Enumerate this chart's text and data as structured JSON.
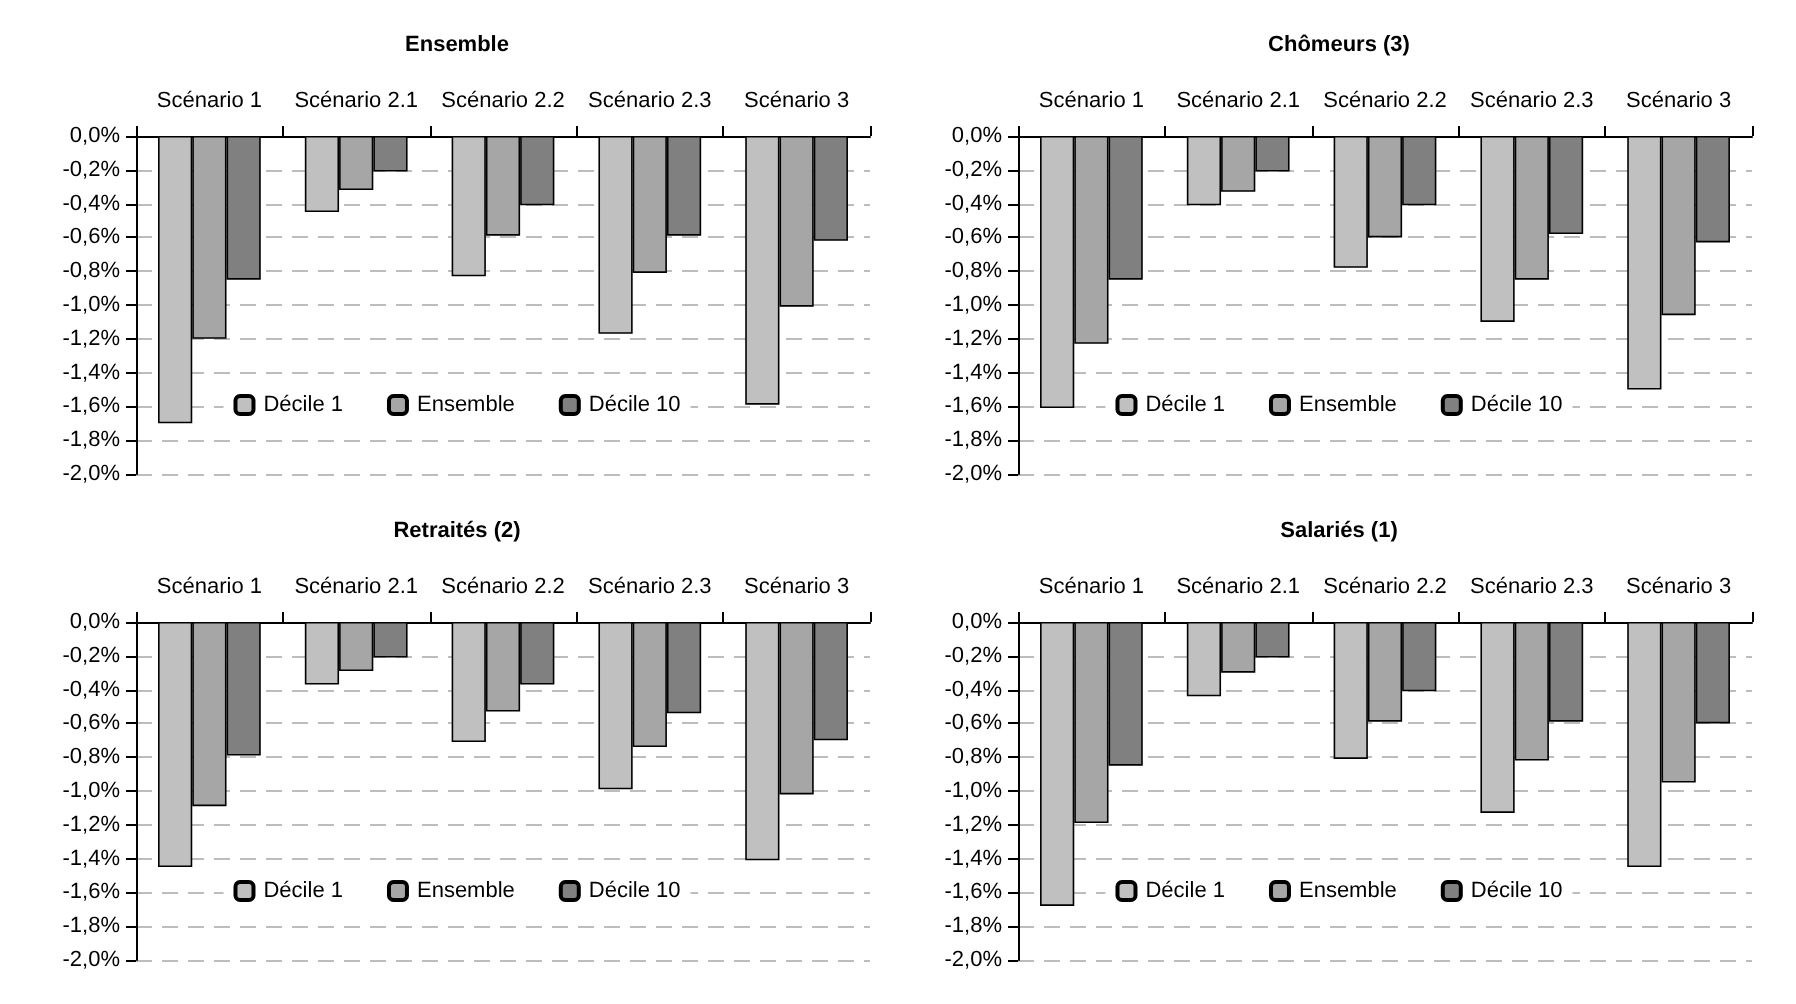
{
  "chart_data": [
    {
      "type": "bar",
      "title": "Ensemble",
      "categories": [
        "Scénario 1",
        "Scénario 2.1",
        "Scénario 2.2",
        "Scénario 2.3",
        "Scénario 3"
      ],
      "series": [
        {
          "name": "Décile 1",
          "color": "#c0c0c0",
          "values": [
            -1.7,
            -0.45,
            -0.83,
            -1.17,
            -1.59
          ]
        },
        {
          "name": "Ensemble",
          "color": "#a6a6a6",
          "values": [
            -1.2,
            -0.32,
            -0.59,
            -0.81,
            -1.01
          ]
        },
        {
          "name": "Décile 10",
          "color": "#808080",
          "values": [
            -0.85,
            -0.21,
            -0.41,
            -0.59,
            -0.62
          ]
        }
      ],
      "ylim": [
        -2,
        0
      ],
      "yticks": [
        {
          "value": 0,
          "label": "0,0%"
        },
        {
          "value": -0.2,
          "label": "-0,2%"
        },
        {
          "value": -0.4,
          "label": "-0,4%"
        },
        {
          "value": -0.6,
          "label": "-0,6%"
        },
        {
          "value": -0.8,
          "label": "-0,8%"
        },
        {
          "value": -1,
          "label": "-1,0%"
        },
        {
          "value": -1.2,
          "label": "-1,2%"
        },
        {
          "value": -1.4,
          "label": "-1,4%"
        },
        {
          "value": -1.6,
          "label": "-1,6%"
        },
        {
          "value": -1.8,
          "label": "-1,8%"
        },
        {
          "value": -2,
          "label": "-2,0%"
        }
      ],
      "grid": "y",
      "legend": "bottom"
    },
    {
      "type": "bar",
      "title": "Chômeurs (3)",
      "categories": [
        "Scénario 1",
        "Scénario 2.1",
        "Scénario 2.2",
        "Scénario 2.3",
        "Scénario 3"
      ],
      "series": [
        {
          "name": "Décile 1",
          "color": "#c0c0c0",
          "values": [
            -1.61,
            -0.41,
            -0.78,
            -1.1,
            -1.5
          ]
        },
        {
          "name": "Ensemble",
          "color": "#a6a6a6",
          "values": [
            -1.23,
            -0.33,
            -0.6,
            -0.85,
            -1.06
          ]
        },
        {
          "name": "Décile 10",
          "color": "#808080",
          "values": [
            -0.85,
            -0.21,
            -0.41,
            -0.58,
            -0.63
          ]
        }
      ],
      "ylim": [
        -2,
        0
      ],
      "yticks": [
        {
          "value": 0,
          "label": "0,0%"
        },
        {
          "value": -0.2,
          "label": "-0,2%"
        },
        {
          "value": -0.4,
          "label": "-0,4%"
        },
        {
          "value": -0.6,
          "label": "-0,6%"
        },
        {
          "value": -0.8,
          "label": "-0,8%"
        },
        {
          "value": -1,
          "label": "-1,0%"
        },
        {
          "value": -1.2,
          "label": "-1,2%"
        },
        {
          "value": -1.4,
          "label": "-1,4%"
        },
        {
          "value": -1.6,
          "label": "-1,6%"
        },
        {
          "value": -1.8,
          "label": "-1,8%"
        },
        {
          "value": -2,
          "label": "-2,0%"
        }
      ],
      "grid": "y",
      "legend": "bottom"
    },
    {
      "type": "bar",
      "title": "Retraités (2)",
      "categories": [
        "Scénario 1",
        "Scénario 2.1",
        "Scénario 2.2",
        "Scénario 2.3",
        "Scénario 3"
      ],
      "series": [
        {
          "name": "Décile 1",
          "color": "#c0c0c0",
          "values": [
            -1.45,
            -0.37,
            -0.71,
            -0.99,
            -1.41
          ]
        },
        {
          "name": "Ensemble",
          "color": "#a6a6a6",
          "values": [
            -1.09,
            -0.29,
            -0.53,
            -0.74,
            -1.02
          ]
        },
        {
          "name": "Décile 10",
          "color": "#808080",
          "values": [
            -0.79,
            -0.21,
            -0.37,
            -0.54,
            -0.7
          ]
        }
      ],
      "ylim": [
        -2,
        0
      ],
      "yticks": [
        {
          "value": 0,
          "label": "0,0%"
        },
        {
          "value": -0.2,
          "label": "-0,2%"
        },
        {
          "value": -0.4,
          "label": "-0,4%"
        },
        {
          "value": -0.6,
          "label": "-0,6%"
        },
        {
          "value": -0.8,
          "label": "-0,8%"
        },
        {
          "value": -1,
          "label": "-1,0%"
        },
        {
          "value": -1.2,
          "label": "-1,2%"
        },
        {
          "value": -1.4,
          "label": "-1,4%"
        },
        {
          "value": -1.6,
          "label": "-1,6%"
        },
        {
          "value": -1.8,
          "label": "-1,8%"
        },
        {
          "value": -2,
          "label": "-2,0%"
        }
      ],
      "grid": "y",
      "legend": "bottom"
    },
    {
      "type": "bar",
      "title": "Salariés (1)",
      "categories": [
        "Scénario 1",
        "Scénario 2.1",
        "Scénario 2.2",
        "Scénario 2.3",
        "Scénario 3"
      ],
      "series": [
        {
          "name": "Décile 1",
          "color": "#c0c0c0",
          "values": [
            -1.68,
            -0.44,
            -0.81,
            -1.13,
            -1.45
          ]
        },
        {
          "name": "Ensemble",
          "color": "#a6a6a6",
          "values": [
            -1.19,
            -0.3,
            -0.59,
            -0.82,
            -0.95
          ]
        },
        {
          "name": "Décile 10",
          "color": "#808080",
          "values": [
            -0.85,
            -0.21,
            -0.41,
            -0.59,
            -0.6
          ]
        }
      ],
      "ylim": [
        -2,
        0
      ],
      "yticks": [
        {
          "value": 0,
          "label": "0,0%"
        },
        {
          "value": -0.2,
          "label": "-0,2%"
        },
        {
          "value": -0.4,
          "label": "-0,4%"
        },
        {
          "value": -0.6,
          "label": "-0,6%"
        },
        {
          "value": -0.8,
          "label": "-0,8%"
        },
        {
          "value": -1,
          "label": "-1,0%"
        },
        {
          "value": -1.2,
          "label": "-1,2%"
        },
        {
          "value": -1.4,
          "label": "-1,4%"
        },
        {
          "value": -1.6,
          "label": "-1,6%"
        },
        {
          "value": -1.8,
          "label": "-1,8%"
        },
        {
          "value": -2,
          "label": "-2,0%"
        }
      ],
      "grid": "y",
      "legend": "bottom"
    }
  ]
}
